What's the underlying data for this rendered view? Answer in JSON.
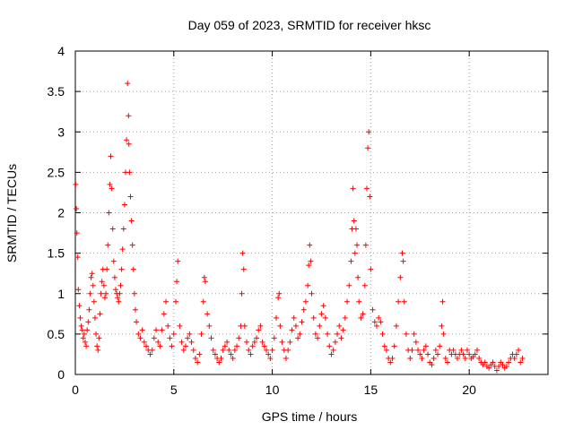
{
  "chart_data": {
    "type": "scatter",
    "title": "Day 059 of 2023, SRMTID for receiver hksc",
    "xlabel": "GPS time / hours",
    "ylabel": "SRMTID / TECUs",
    "xlim": [
      0,
      24
    ],
    "ylim": [
      0,
      4
    ],
    "x_ticks": [
      0,
      5,
      10,
      15,
      20
    ],
    "x_tick_labels": [
      "0",
      "5",
      "10",
      "15",
      "20"
    ],
    "y_ticks": [
      0,
      0.5,
      1,
      1.5,
      2,
      2.5,
      3,
      3.5,
      4
    ],
    "y_tick_labels": [
      "0",
      "0.5",
      "1",
      "1.5",
      "2",
      "2.5",
      "3",
      "3.5",
      "4"
    ],
    "grid": true,
    "marker": "+",
    "series": [
      {
        "name": "SRMTID",
        "color": "#ff0000",
        "points": [
          [
            0.02,
            2.35
          ],
          [
            0.05,
            2.05
          ],
          [
            0.08,
            1.75
          ],
          [
            0.12,
            1.45
          ],
          [
            0.15,
            1.05
          ],
          [
            0.2,
            0.85
          ],
          [
            0.25,
            0.7
          ],
          [
            0.3,
            0.6
          ],
          [
            0.35,
            0.55
          ],
          [
            0.4,
            0.45
          ],
          [
            0.45,
            0.5
          ],
          [
            0.5,
            0.4
          ],
          [
            0.55,
            0.35
          ],
          [
            0.6,
            0.55
          ],
          [
            0.65,
            0.65
          ],
          [
            0.7,
            0.8
          ],
          [
            0.75,
            1.0
          ],
          [
            0.8,
            1.2
          ],
          [
            0.85,
            1.25
          ],
          [
            0.9,
            1.1
          ],
          [
            0.95,
            0.9
          ],
          [
            1.0,
            0.7
          ],
          [
            1.05,
            0.5
          ],
          [
            1.1,
            0.35
          ],
          [
            1.15,
            0.3
          ],
          [
            1.2,
            0.45
          ],
          [
            1.25,
            0.75
          ],
          [
            1.3,
            1.0
          ],
          [
            1.35,
            1.15
          ],
          [
            1.4,
            1.3
          ],
          [
            1.45,
            1.1
          ],
          [
            1.5,
            0.95
          ],
          [
            1.55,
            1.0
          ],
          [
            1.6,
            1.3
          ],
          [
            1.65,
            1.6
          ],
          [
            1.7,
            2.0
          ],
          [
            1.75,
            2.35
          ],
          [
            1.8,
            2.7
          ],
          [
            1.85,
            2.3
          ],
          [
            1.9,
            1.8
          ],
          [
            1.95,
            1.4
          ],
          [
            2.0,
            1.2
          ],
          [
            2.05,
            1.05
          ],
          [
            2.1,
            1.0
          ],
          [
            2.15,
            0.95
          ],
          [
            2.2,
            0.9
          ],
          [
            2.25,
            1.0
          ],
          [
            2.3,
            1.1
          ],
          [
            2.35,
            1.3
          ],
          [
            2.4,
            1.55
          ],
          [
            2.45,
            1.8
          ],
          [
            2.5,
            2.1
          ],
          [
            2.55,
            2.5
          ],
          [
            2.6,
            2.9
          ],
          [
            2.65,
            3.6
          ],
          [
            2.7,
            3.2
          ],
          [
            2.72,
            2.85
          ],
          [
            2.75,
            2.5
          ],
          [
            2.8,
            2.2
          ],
          [
            2.85,
            1.9
          ],
          [
            2.9,
            1.6
          ],
          [
            2.95,
            1.3
          ],
          [
            3.0,
            1.0
          ],
          [
            3.05,
            0.8
          ],
          [
            3.1,
            0.65
          ],
          [
            3.2,
            0.5
          ],
          [
            3.3,
            0.45
          ],
          [
            3.4,
            0.55
          ],
          [
            3.5,
            0.4
          ],
          [
            3.6,
            0.35
          ],
          [
            3.7,
            0.3
          ],
          [
            3.8,
            0.25
          ],
          [
            3.9,
            0.3
          ],
          [
            4.0,
            0.45
          ],
          [
            4.1,
            0.55
          ],
          [
            4.2,
            0.4
          ],
          [
            4.3,
            0.35
          ],
          [
            4.4,
            0.55
          ],
          [
            4.5,
            0.75
          ],
          [
            4.6,
            0.9
          ],
          [
            4.7,
            0.6
          ],
          [
            4.8,
            0.45
          ],
          [
            4.9,
            0.35
          ],
          [
            5.0,
            0.5
          ],
          [
            5.1,
            0.9
          ],
          [
            5.15,
            1.15
          ],
          [
            5.2,
            1.4
          ],
          [
            5.3,
            0.6
          ],
          [
            5.4,
            0.4
          ],
          [
            5.5,
            0.3
          ],
          [
            5.6,
            0.35
          ],
          [
            5.7,
            0.45
          ],
          [
            5.8,
            0.5
          ],
          [
            5.9,
            0.4
          ],
          [
            6.0,
            0.3
          ],
          [
            6.1,
            0.2
          ],
          [
            6.2,
            0.15
          ],
          [
            6.3,
            0.25
          ],
          [
            6.4,
            0.5
          ],
          [
            6.5,
            0.9
          ],
          [
            6.55,
            1.2
          ],
          [
            6.6,
            1.15
          ],
          [
            6.7,
            0.75
          ],
          [
            6.8,
            0.6
          ],
          [
            6.9,
            0.45
          ],
          [
            7.0,
            0.3
          ],
          [
            7.1,
            0.25
          ],
          [
            7.2,
            0.2
          ],
          [
            7.3,
            0.15
          ],
          [
            7.4,
            0.2
          ],
          [
            7.5,
            0.3
          ],
          [
            7.6,
            0.35
          ],
          [
            7.7,
            0.4
          ],
          [
            7.8,
            0.3
          ],
          [
            7.9,
            0.25
          ],
          [
            8.0,
            0.2
          ],
          [
            8.1,
            0.3
          ],
          [
            8.2,
            0.35
          ],
          [
            8.3,
            0.45
          ],
          [
            8.4,
            0.6
          ],
          [
            8.45,
            1.0
          ],
          [
            8.5,
            1.5
          ],
          [
            8.55,
            1.3
          ],
          [
            8.6,
            0.6
          ],
          [
            8.7,
            0.4
          ],
          [
            8.8,
            0.3
          ],
          [
            8.9,
            0.25
          ],
          [
            9.0,
            0.35
          ],
          [
            9.1,
            0.4
          ],
          [
            9.2,
            0.45
          ],
          [
            9.3,
            0.55
          ],
          [
            9.4,
            0.6
          ],
          [
            9.5,
            0.4
          ],
          [
            9.6,
            0.35
          ],
          [
            9.7,
            0.3
          ],
          [
            9.8,
            0.25
          ],
          [
            9.9,
            0.2
          ],
          [
            10.0,
            0.3
          ],
          [
            10.1,
            0.45
          ],
          [
            10.2,
            0.7
          ],
          [
            10.3,
            0.95
          ],
          [
            10.35,
            1.0
          ],
          [
            10.4,
            0.6
          ],
          [
            10.5,
            0.4
          ],
          [
            10.6,
            0.3
          ],
          [
            10.7,
            0.2
          ],
          [
            10.8,
            0.3
          ],
          [
            10.9,
            0.4
          ],
          [
            11.0,
            0.55
          ],
          [
            11.1,
            0.7
          ],
          [
            11.2,
            0.6
          ],
          [
            11.3,
            0.45
          ],
          [
            11.4,
            0.5
          ],
          [
            11.5,
            0.65
          ],
          [
            11.6,
            0.8
          ],
          [
            11.7,
            0.9
          ],
          [
            11.8,
            1.1
          ],
          [
            11.85,
            1.35
          ],
          [
            11.9,
            1.6
          ],
          [
            11.95,
            1.4
          ],
          [
            12.0,
            1.0
          ],
          [
            12.1,
            0.7
          ],
          [
            12.2,
            0.5
          ],
          [
            12.3,
            0.45
          ],
          [
            12.4,
            0.6
          ],
          [
            12.5,
            0.75
          ],
          [
            12.6,
            0.85
          ],
          [
            12.7,
            0.7
          ],
          [
            12.8,
            0.5
          ],
          [
            12.9,
            0.35
          ],
          [
            13.0,
            0.25
          ],
          [
            13.1,
            0.3
          ],
          [
            13.2,
            0.4
          ],
          [
            13.3,
            0.5
          ],
          [
            13.4,
            0.6
          ],
          [
            13.5,
            0.45
          ],
          [
            13.6,
            0.55
          ],
          [
            13.7,
            0.7
          ],
          [
            13.8,
            0.9
          ],
          [
            13.9,
            1.1
          ],
          [
            14.0,
            1.4
          ],
          [
            14.05,
            1.8
          ],
          [
            14.1,
            2.3
          ],
          [
            14.15,
            1.9
          ],
          [
            14.2,
            1.5
          ],
          [
            14.25,
            1.8
          ],
          [
            14.3,
            1.6
          ],
          [
            14.35,
            1.2
          ],
          [
            14.4,
            0.9
          ],
          [
            14.5,
            0.7
          ],
          [
            14.6,
            0.75
          ],
          [
            14.7,
            1.1
          ],
          [
            14.75,
            1.6
          ],
          [
            14.8,
            2.3
          ],
          [
            14.85,
            2.8
          ],
          [
            14.9,
            3.0
          ],
          [
            14.95,
            2.2
          ],
          [
            15.0,
            1.3
          ],
          [
            15.1,
            0.8
          ],
          [
            15.2,
            0.65
          ],
          [
            15.3,
            0.6
          ],
          [
            15.4,
            0.7
          ],
          [
            15.5,
            0.65
          ],
          [
            15.6,
            0.5
          ],
          [
            15.7,
            0.35
          ],
          [
            15.8,
            0.3
          ],
          [
            15.9,
            0.2
          ],
          [
            16.0,
            0.15
          ],
          [
            16.1,
            0.2
          ],
          [
            16.2,
            0.35
          ],
          [
            16.3,
            0.6
          ],
          [
            16.4,
            0.9
          ],
          [
            16.5,
            1.2
          ],
          [
            16.6,
            1.5
          ],
          [
            16.65,
            1.4
          ],
          [
            16.7,
            0.9
          ],
          [
            16.8,
            0.5
          ],
          [
            16.9,
            0.3
          ],
          [
            17.0,
            0.2
          ],
          [
            17.1,
            0.3
          ],
          [
            17.2,
            0.5
          ],
          [
            17.3,
            0.4
          ],
          [
            17.4,
            0.3
          ],
          [
            17.5,
            0.25
          ],
          [
            17.6,
            0.2
          ],
          [
            17.7,
            0.3
          ],
          [
            17.8,
            0.35
          ],
          [
            17.9,
            0.25
          ],
          [
            18.0,
            0.15
          ],
          [
            18.1,
            0.12
          ],
          [
            18.2,
            0.2
          ],
          [
            18.3,
            0.3
          ],
          [
            18.4,
            0.25
          ],
          [
            18.5,
            0.35
          ],
          [
            18.6,
            0.6
          ],
          [
            18.65,
            0.9
          ],
          [
            18.7,
            0.5
          ],
          [
            18.8,
            0.2
          ],
          [
            18.9,
            0.15
          ],
          [
            19.0,
            0.3
          ],
          [
            19.1,
            0.25
          ],
          [
            19.2,
            0.3
          ],
          [
            19.3,
            0.25
          ],
          [
            19.4,
            0.2
          ],
          [
            19.5,
            0.25
          ],
          [
            19.6,
            0.3
          ],
          [
            19.7,
            0.25
          ],
          [
            19.8,
            0.2
          ],
          [
            19.9,
            0.3
          ],
          [
            20.0,
            0.25
          ],
          [
            20.1,
            0.2
          ],
          [
            20.2,
            0.22
          ],
          [
            20.3,
            0.25
          ],
          [
            20.4,
            0.3
          ],
          [
            20.5,
            0.2
          ],
          [
            20.6,
            0.15
          ],
          [
            20.7,
            0.12
          ],
          [
            20.8,
            0.15
          ],
          [
            20.9,
            0.1
          ],
          [
            21.0,
            0.08
          ],
          [
            21.1,
            0.12
          ],
          [
            21.2,
            0.15
          ],
          [
            21.3,
            0.1
          ],
          [
            21.4,
            0.05
          ],
          [
            21.5,
            0.1
          ],
          [
            21.6,
            0.15
          ],
          [
            21.7,
            0.12
          ],
          [
            21.8,
            0.08
          ],
          [
            21.9,
            0.1
          ],
          [
            22.0,
            0.15
          ],
          [
            22.1,
            0.2
          ],
          [
            22.2,
            0.25
          ],
          [
            22.3,
            0.2
          ],
          [
            22.4,
            0.25
          ],
          [
            22.5,
            0.3
          ],
          [
            22.6,
            0.15
          ],
          [
            22.7,
            0.2
          ]
        ]
      }
    ]
  }
}
